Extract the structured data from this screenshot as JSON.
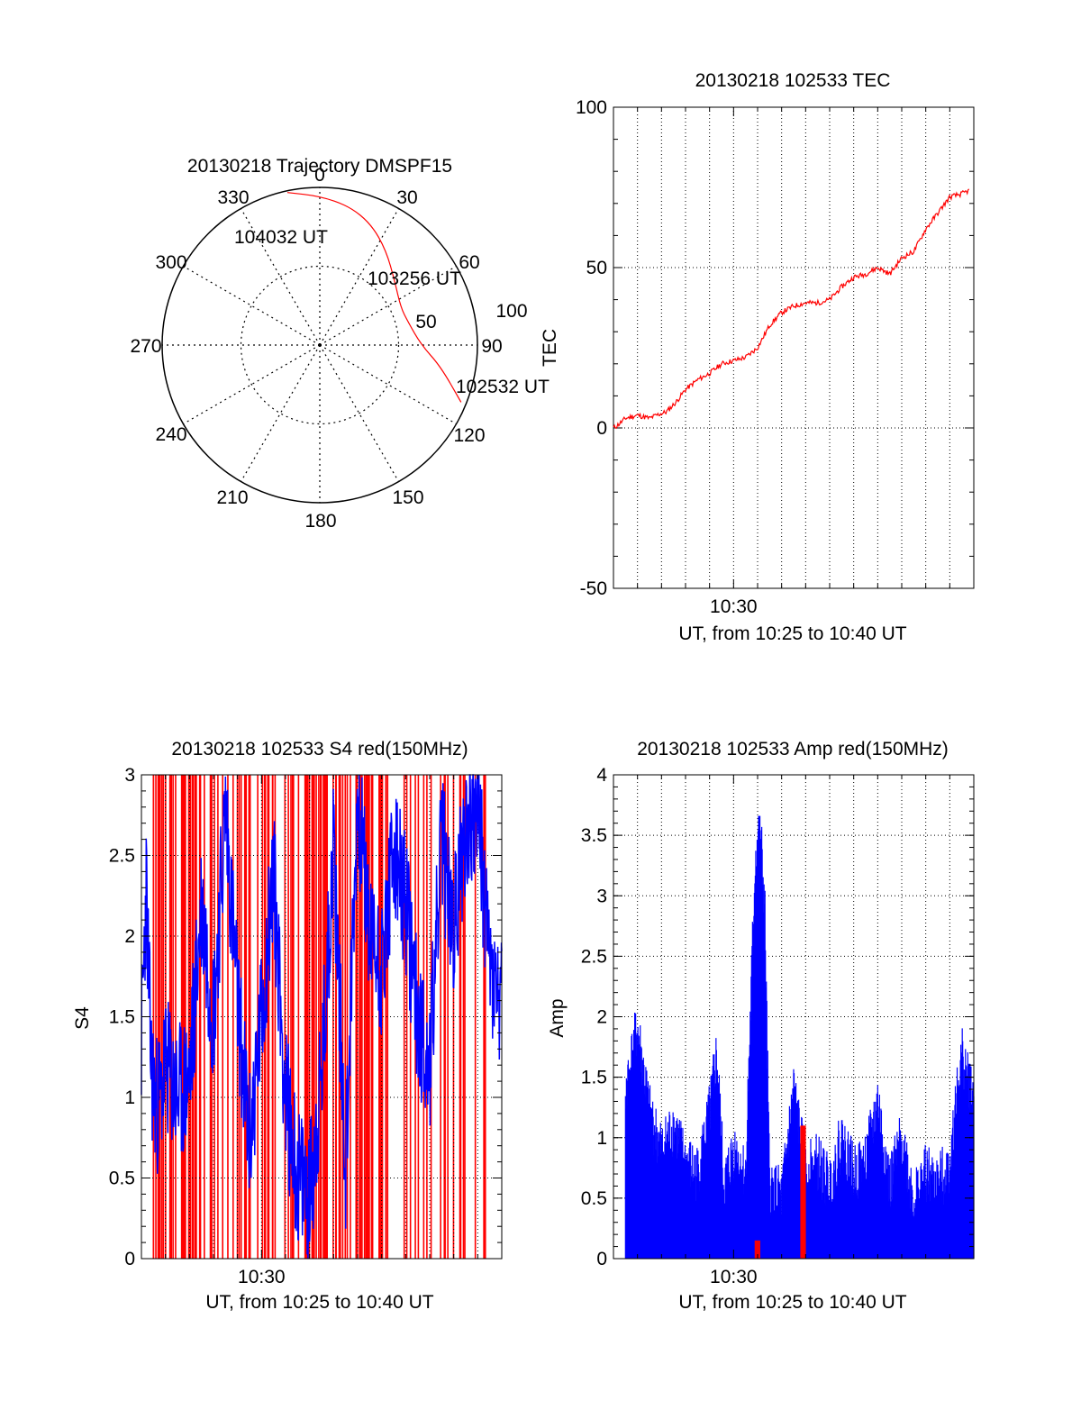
{
  "colors": {
    "primary": "#ff0000",
    "secondary": "#0000ff",
    "axis": "#000000",
    "grid": "#000000"
  },
  "chart_data": [
    {
      "type": "polar",
      "title": "20130218 Trajectory DMSPF15",
      "azimuth_labels": [
        "0",
        "30",
        "60",
        "90",
        "120",
        "150",
        "180",
        "210",
        "240",
        "270",
        "300",
        "330"
      ],
      "elevation_ring_labels": [
        "50",
        "100"
      ],
      "track": {
        "color": "#ff0000",
        "points": [
          {
            "azimuth": 112,
            "elevation": 3
          },
          {
            "azimuth": 100,
            "elevation": 20
          },
          {
            "azimuth": 90,
            "elevation": 32
          },
          {
            "azimuth": 75,
            "elevation": 38
          },
          {
            "azimuth": 65,
            "elevation": 39
          },
          {
            "azimuth": 50,
            "elevation": 34
          },
          {
            "azimuth": 35,
            "elevation": 24
          },
          {
            "azimuth": 23,
            "elevation": 15
          },
          {
            "azimuth": 12,
            "elevation": 9
          },
          {
            "azimuth": 0,
            "elevation": 5
          },
          {
            "azimuth": -12,
            "elevation": 1
          }
        ]
      },
      "annotations": [
        "104032 UT",
        "103256 UT",
        "102532 UT"
      ]
    },
    {
      "type": "line",
      "title": "20130218 102533 TEC",
      "xlabel": "UT, from 10:25 to 10:40 UT",
      "ylabel": "TEC",
      "xtick_labels": [
        "10:30"
      ],
      "ytick_labels": [
        "-50",
        "0",
        "50",
        "100"
      ],
      "xlim": [
        0,
        15
      ],
      "ylim": [
        -50,
        100
      ],
      "series": [
        {
          "color": "#ff0000",
          "x": [
            0.0,
            0.2,
            0.5,
            1.0,
            1.5,
            1.8,
            2.2,
            2.6,
            3.0,
            3.5,
            4.0,
            4.5,
            5.0,
            5.5,
            6.0,
            6.5,
            7.0,
            7.5,
            8.0,
            8.5,
            9.0,
            9.5,
            10.0,
            10.5,
            11.0,
            11.5,
            12.0,
            12.5,
            13.0,
            13.5,
            14.0,
            14.5,
            14.8
          ],
          "y": [
            0,
            1,
            3,
            4,
            3,
            4,
            5,
            8,
            12,
            15,
            17,
            20,
            21,
            22,
            25,
            32,
            36,
            38,
            39,
            39,
            40,
            44,
            47,
            48,
            50,
            48,
            53,
            55,
            62,
            67,
            72,
            73,
            74
          ]
        }
      ]
    },
    {
      "type": "line",
      "title": "20130218 102533 S4 red(150MHz)",
      "xlabel": "UT, from 10:25 to 10:40 UT",
      "ylabel": "S4",
      "xtick_labels": [
        "10:30"
      ],
      "ytick_labels": [
        "0",
        "0.5",
        "1",
        "1.5",
        "2",
        "2.5",
        "3"
      ],
      "xlim": [
        0,
        15
      ],
      "ylim": [
        0,
        3
      ],
      "series": [
        {
          "color": "#0000ff",
          "x": [
            0.0,
            0.2,
            0.4,
            0.6,
            0.8,
            1.0,
            1.5,
            2.0,
            2.5,
            3.0,
            3.5,
            4.0,
            4.5,
            5.0,
            5.5,
            6.0,
            6.5,
            7.0,
            7.5,
            8.0,
            8.5,
            9.0,
            9.5,
            10.0,
            10.5,
            11.0,
            11.5,
            12.0,
            12.5,
            13.0,
            13.5,
            14.0,
            14.5,
            15.0
          ],
          "y": [
            1.35,
            2.3,
            1.2,
            0.95,
            1.0,
            1.2,
            1.0,
            1.1,
            2.2,
            1.5,
            2.8,
            1.6,
            0.7,
            1.5,
            2.4,
            1.0,
            0.5,
            0.4,
            1.1,
            2.6,
            0.6,
            2.9,
            2.0,
            1.8,
            2.5,
            2.2,
            1.5,
            1.2,
            2.6,
            2.0,
            2.7,
            2.8,
            1.8,
            1.5
          ]
        }
      ]
    },
    {
      "type": "bar",
      "title": "20130218 102533 Amp red(150MHz)",
      "xlabel": "UT, from 10:25 to 10:40 UT",
      "ylabel": "Amp",
      "xtick_labels": [
        "10:30"
      ],
      "ytick_labels": [
        "0",
        "0.5",
        "1",
        "1.5",
        "2",
        "2.5",
        "3",
        "3.5",
        "4"
      ],
      "xlim": [
        0,
        15
      ],
      "ylim": [
        0,
        4
      ],
      "series": [
        {
          "color": "#0000ff",
          "x": [
            0.0,
            0.5,
            1.0,
            1.5,
            2.0,
            2.5,
            3.0,
            3.5,
            4.0,
            4.3,
            4.6,
            5.0,
            5.5,
            5.9,
            6.1,
            6.3,
            6.5,
            7.0,
            7.5,
            8.0,
            8.5,
            9.0,
            9.5,
            10.0,
            10.5,
            11.0,
            11.5,
            12.0,
            12.5,
            13.0,
            13.5,
            14.0,
            14.5,
            15.0
          ],
          "y": [
            1.6,
            1.4,
            1.9,
            1.2,
            0.9,
            1.1,
            0.8,
            0.7,
            1.2,
            1.7,
            0.6,
            0.9,
            0.7,
            3.3,
            3.6,
            2.9,
            0.6,
            0.5,
            1.4,
            0.7,
            0.8,
            0.6,
            1.0,
            0.7,
            0.8,
            1.3,
            0.6,
            1.0,
            0.5,
            0.7,
            0.6,
            0.8,
            1.7,
            1.3
          ]
        },
        {
          "color": "#ff0000",
          "x": [
            5.9,
            6.1,
            7.8,
            8.0
          ],
          "y": [
            0.15,
            0.18,
            1.1,
            0.9
          ]
        }
      ]
    }
  ]
}
